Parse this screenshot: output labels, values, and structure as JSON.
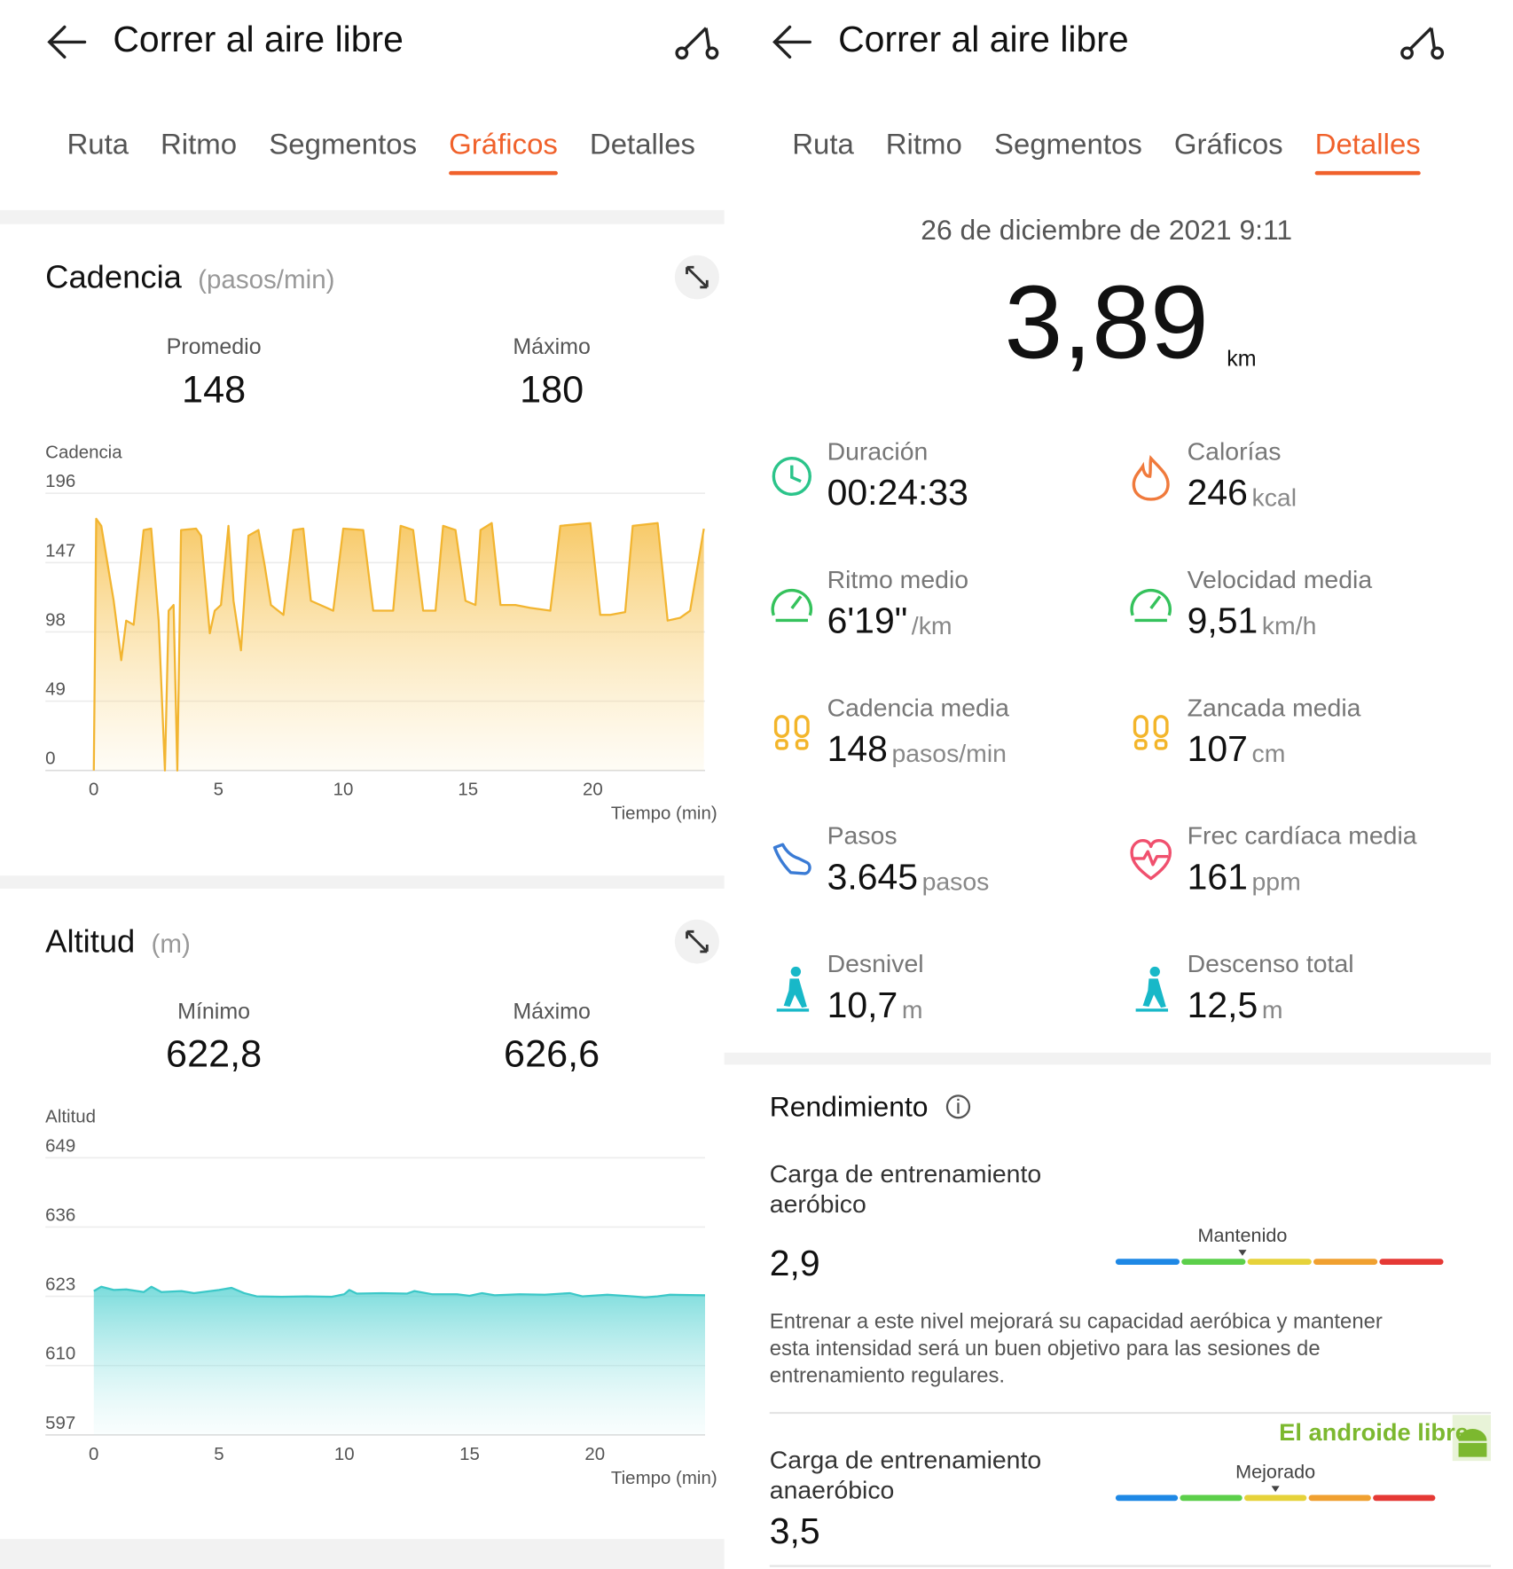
{
  "left": {
    "header": {
      "title": "Correr al aire libre"
    },
    "tabs": [
      "Ruta",
      "Ritmo",
      "Segmentos",
      "Gráficos",
      "Detalles"
    ],
    "active_tab": 3,
    "cadence": {
      "title": "Cadencia",
      "unit": "(pasos/min)",
      "stats": [
        {
          "label": "Promedio",
          "value": 148
        },
        {
          "label": "Máximo",
          "value": 180
        }
      ],
      "chart": {
        "type": "area",
        "y_label": "Cadencia",
        "x_label": "Tiempo (min)",
        "color": "#f2b531",
        "x": [
          0,
          0.1,
          0.3,
          0.8,
          1.1,
          1.3,
          1.6,
          2.0,
          2.3,
          2.6,
          2.85,
          3.0,
          3.2,
          3.35,
          3.5,
          4.1,
          4.3,
          4.65,
          4.85,
          5.1,
          5.4,
          5.6,
          5.9,
          6.2,
          6.6,
          6.85,
          7.1,
          7.6,
          8.0,
          8.4,
          8.7,
          9.6,
          10.0,
          10.8,
          11.2,
          12.0,
          12.3,
          12.8,
          13.2,
          13.7,
          14.0,
          14.5,
          14.9,
          15.3,
          15.5,
          15.95,
          16.3,
          16.9,
          17.5,
          18.3,
          18.7,
          19.9,
          20.3,
          20.7,
          21.3,
          21.6,
          22.6,
          23.0,
          23.5,
          23.9,
          24.45
        ],
        "values": [
          0,
          178,
          173,
          120,
          78,
          106,
          103,
          170,
          171,
          106,
          0,
          113,
          117,
          0,
          170,
          171,
          166,
          97,
          113,
          117,
          173,
          120,
          85,
          166,
          170,
          145,
          117,
          110,
          170,
          171,
          120,
          113,
          171,
          170,
          113,
          113,
          173,
          170,
          113,
          113,
          173,
          170,
          120,
          117,
          170,
          175,
          117,
          117,
          115,
          113,
          173,
          175,
          110,
          110,
          112,
          173,
          175,
          106,
          108,
          113,
          171
        ],
        "xlim": [
          -0.16,
          24.5
        ],
        "ylim": [
          0,
          196
        ],
        "xticks": [
          0,
          5,
          10,
          15,
          20
        ],
        "yticks": [
          0,
          49,
          98,
          147,
          196
        ]
      }
    },
    "altitude": {
      "title": "Altitud",
      "unit": "(m)",
      "stats": [
        {
          "label": "Mínimo",
          "value": "622,8"
        },
        {
          "label": "Máximo",
          "value": "626,6"
        }
      ],
      "chart": {
        "type": "area",
        "y_label": "Altitud",
        "x_label": "Tiempo (min)",
        "color": "#3cc8c8",
        "x": [
          0,
          0.3,
          0.8,
          1.3,
          2.0,
          2.3,
          2.7,
          3.5,
          4.0,
          5.0,
          5.5,
          6.0,
          6.5,
          7.5,
          8.5,
          9.5,
          10.0,
          10.2,
          10.5,
          11.5,
          12.5,
          12.8,
          13.5,
          14.5,
          15.0,
          15.5,
          16.0,
          17.0,
          18.0,
          19.0,
          19.5,
          20.5,
          21.5,
          22.0,
          22.5,
          23.0,
          24.4
        ],
        "values": [
          624.0,
          624.8,
          624.2,
          624.3,
          623.8,
          624.8,
          623.8,
          624.0,
          623.6,
          624.2,
          624.6,
          623.6,
          623.0,
          622.9,
          623.0,
          622.9,
          623.4,
          624.2,
          623.5,
          623.6,
          623.5,
          624.0,
          623.4,
          623.4,
          623.1,
          623.6,
          623.2,
          623.4,
          623.3,
          623.6,
          623.0,
          623.3,
          623.0,
          622.8,
          623.0,
          623.3,
          623.2
        ],
        "xlim": [
          -0.16,
          24.4
        ],
        "ylim": [
          597,
          649
        ],
        "xticks": [
          0,
          5,
          10,
          15,
          20
        ],
        "yticks": [
          597,
          610,
          623,
          636,
          649
        ]
      }
    }
  },
  "right": {
    "header": {
      "title": "Correr al aire libre"
    },
    "tabs": [
      "Ruta",
      "Ritmo",
      "Segmentos",
      "Gráficos",
      "Detalles"
    ],
    "active_tab": 4,
    "date": "26 de diciembre de 2021 9:11",
    "distance": {
      "value": "3,89",
      "unit": "km"
    },
    "metrics": [
      {
        "label": "Duración",
        "value": "00:24:33"
      },
      {
        "label": "Calorías",
        "value": 246,
        "unit": "kcal"
      },
      {
        "label": "Ritmo medio",
        "value": "6'19\"",
        "unit": "/km"
      },
      {
        "label": "Velocidad media",
        "value": "9,51",
        "unit": "km/h"
      },
      {
        "label": "Cadencia media",
        "value": 148,
        "unit": "pasos/min"
      },
      {
        "label": "Zancada media",
        "value": 107,
        "unit": "cm"
      },
      {
        "label": "Pasos",
        "value": "3.645",
        "unit": "pasos"
      },
      {
        "label": "Frec cardíaca media",
        "value": 161,
        "unit": "ppm"
      },
      {
        "label": "Desnivel",
        "value": "10,7",
        "unit": "m"
      },
      {
        "label": "Descenso total",
        "value": "12,5",
        "unit": "m"
      }
    ],
    "performance": {
      "title": "Rendimiento",
      "items": [
        {
          "title_lines": [
            "Carga de entrenamiento",
            "aeróbico"
          ],
          "value": "2,9",
          "status": "Mantenido",
          "description_lines": [
            "Entrenar a este nivel mejorará su capacidad aeróbica y mantener",
            "esta intensidad será un buen objetivo para las sesiones de",
            "entrenamiento regulares."
          ]
        },
        {
          "title_lines": [
            "Carga de entrenamiento",
            "anaeróbico"
          ],
          "value": "3,5",
          "status": "Mejorado"
        }
      ]
    },
    "watermark": "El androide libre"
  }
}
